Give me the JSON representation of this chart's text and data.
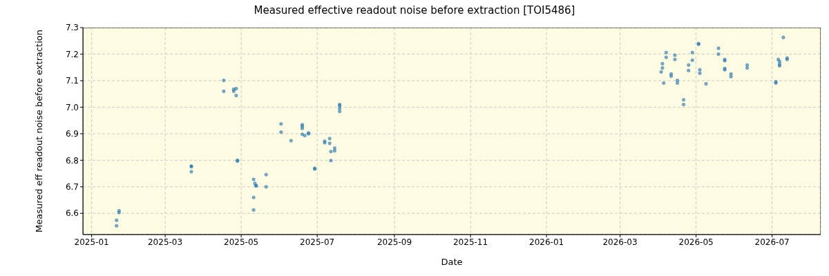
{
  "chart_data": {
    "type": "scatter",
    "title": "Measured effective readout noise before extraction [TOI5486]",
    "xlabel": "Date",
    "ylabel": "Measured eff readout noise before extraction",
    "marker": "circle",
    "grid": true,
    "legend": false,
    "xlim": [
      "2024-12-25",
      "2026-08-09"
    ],
    "xticks": [
      "2025-01",
      "2025-03",
      "2025-05",
      "2025-07",
      "2025-09",
      "2025-11",
      "2026-01",
      "2026-03",
      "2026-05",
      "2026-07"
    ],
    "ylim": [
      6.52,
      7.3
    ],
    "yticks": [
      6.6,
      6.7,
      6.8,
      6.9,
      {
        "value": 7,
        "label": "7.0"
      },
      7.1,
      7.2,
      7.3
    ],
    "series": [
      {
        "color": "#1f77b4",
        "x": [
          "2025-01-21",
          "2025-01-21",
          "2025-01-23",
          "2025-01-23",
          "2025-03-22",
          "2025-03-22",
          "2025-03-22",
          "2025-04-17",
          "2025-04-17",
          "2025-04-25",
          "2025-04-25",
          "2025-04-27",
          "2025-04-27",
          "2025-04-28",
          "2025-04-28",
          "2025-05-11",
          "2025-05-12",
          "2025-05-13",
          "2025-05-13",
          "2025-05-21",
          "2025-05-21",
          "2025-05-11",
          "2025-05-11",
          "2025-06-02",
          "2025-06-02",
          "2025-06-10",
          "2025-06-19",
          "2025-06-19",
          "2025-06-19",
          "2025-06-19",
          "2025-06-21",
          "2025-06-24",
          "2025-06-24",
          "2025-06-29",
          "2025-06-29",
          "2025-07-07",
          "2025-07-07",
          "2025-07-11",
          "2025-07-11",
          "2025-07-12",
          "2025-07-15",
          "2025-07-15",
          "2025-07-12",
          "2025-07-19",
          "2025-07-19",
          "2025-07-19",
          "2025-07-19",
          "2026-04-04",
          "2026-04-04",
          "2026-04-03",
          "2026-04-05",
          "2026-04-07",
          "2026-04-07",
          "2026-04-14",
          "2026-04-14",
          "2026-04-11",
          "2026-04-11",
          "2026-04-16",
          "2026-04-16",
          "2026-04-21",
          "2026-04-21",
          "2026-04-25",
          "2026-04-25",
          "2026-04-28",
          "2026-04-28",
          "2026-05-03",
          "2026-05-03",
          "2026-05-04",
          "2026-05-04",
          "2026-05-09",
          "2026-05-19",
          "2026-05-19",
          "2026-05-24",
          "2026-05-24",
          "2026-05-24",
          "2026-05-24",
          "2026-05-29",
          "2026-05-29",
          "2026-06-11",
          "2026-06-11",
          "2026-07-04",
          "2026-07-04",
          "2026-07-06",
          "2026-07-07",
          "2026-07-07",
          "2026-07-07",
          "2026-07-10",
          "2026-07-13",
          "2026-07-13"
        ],
        "values": [
          6.574,
          6.553,
          6.61,
          6.603,
          6.778,
          6.776,
          6.757,
          7.101,
          7.06,
          7.068,
          7.06,
          7.07,
          7.044,
          6.8,
          6.797,
          6.728,
          6.713,
          6.705,
          6.703,
          6.746,
          6.7,
          6.66,
          6.613,
          6.937,
          6.906,
          6.874,
          6.934,
          6.928,
          6.92,
          6.898,
          6.893,
          6.903,
          6.9,
          6.77,
          6.767,
          6.872,
          6.866,
          6.882,
          6.864,
          6.833,
          6.846,
          6.836,
          6.799,
          7.01,
          7.006,
          6.995,
          6.984,
          7.164,
          7.148,
          7.133,
          7.091,
          7.206,
          7.188,
          7.196,
          7.18,
          7.125,
          7.117,
          7.101,
          7.091,
          7.028,
          7.01,
          7.159,
          7.138,
          7.206,
          7.177,
          7.237,
          7.24,
          7.141,
          7.128,
          7.088,
          7.222,
          7.2,
          7.18,
          7.175,
          7.146,
          7.141,
          7.125,
          7.115,
          7.159,
          7.148,
          7.096,
          7.091,
          7.18,
          7.172,
          7.162,
          7.156,
          7.263,
          7.185,
          7.18
        ]
      }
    ]
  }
}
